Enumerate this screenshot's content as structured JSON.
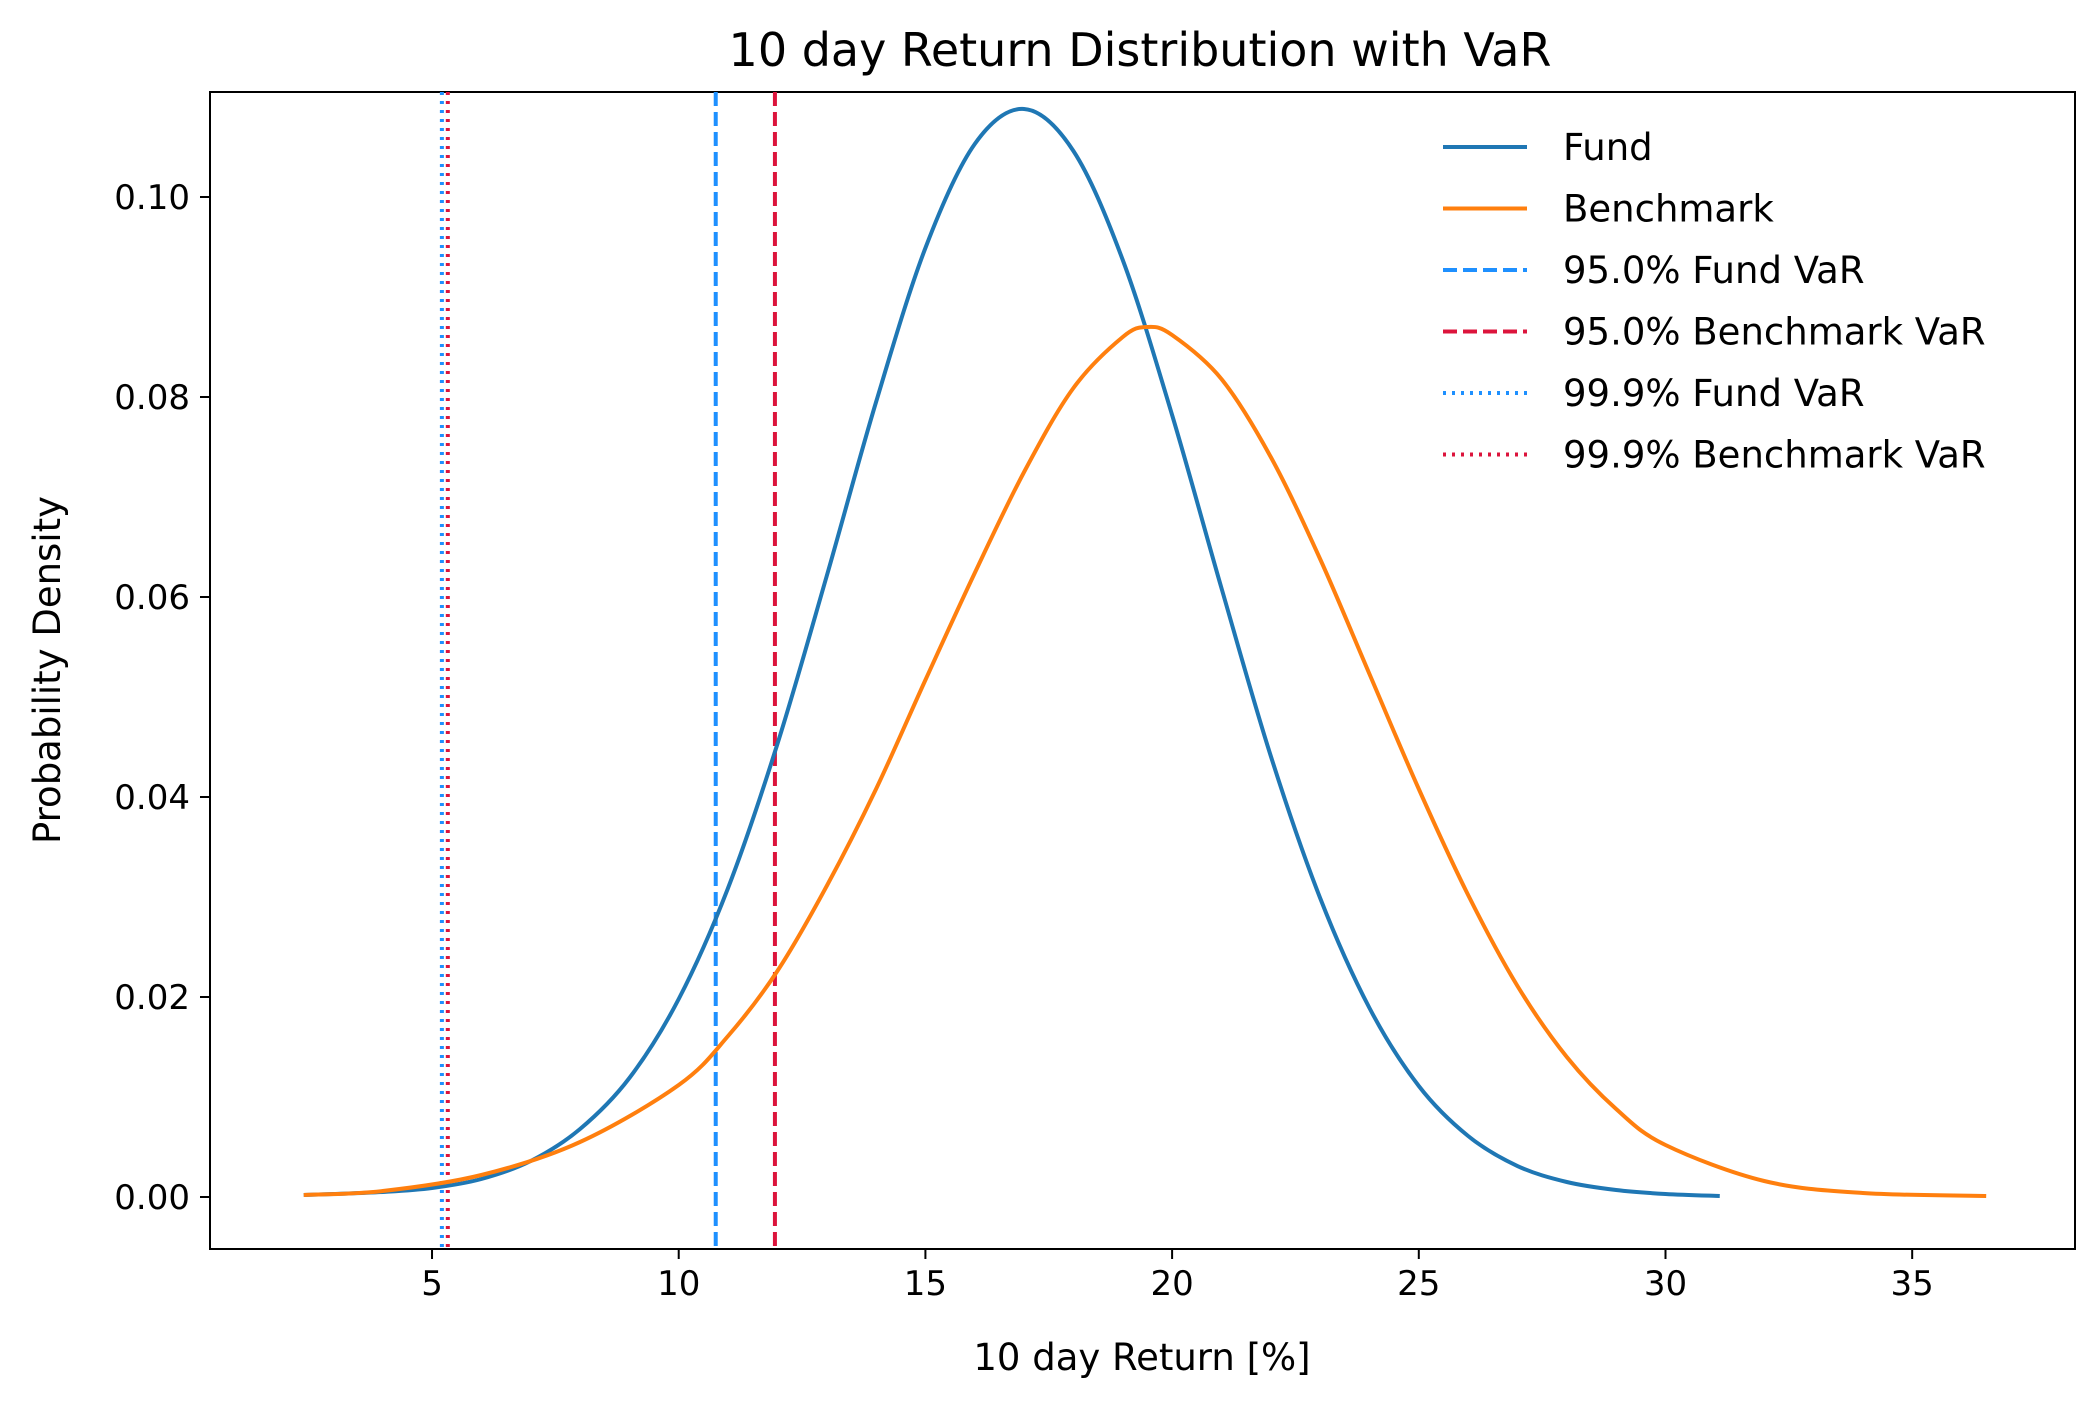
{
  "chart_data": {
    "type": "line",
    "title": "10 day Return Distribution with VaR",
    "xlabel": "10 day Return [%]",
    "ylabel": "Probability Density",
    "xlim": [
      0.5,
      38.3
    ],
    "ylim": [
      -0.0052,
      0.1105
    ],
    "xticks": [
      5,
      10,
      15,
      20,
      25,
      30,
      35
    ],
    "xtick_labels": [
      "5",
      "10",
      "15",
      "20",
      "25",
      "30",
      "35"
    ],
    "yticks": [
      0,
      0.02,
      0.04,
      0.06,
      0.08,
      0.1
    ],
    "ytick_labels": [
      "0.00",
      "0.02",
      "0.04",
      "0.06",
      "0.08",
      "0.10"
    ],
    "grid": false,
    "legend_position": "top-right",
    "series": [
      {
        "name": "Fund",
        "color": "#1f77b4",
        "style": "solid",
        "x": [
          2.4,
          3,
          4,
          5,
          6,
          7,
          8,
          9,
          10,
          11,
          12,
          13,
          14,
          15,
          16,
          17,
          18,
          19,
          20,
          21,
          22,
          23,
          24,
          25,
          26,
          27,
          28,
          29,
          30,
          31.1
        ],
        "y": [
          0.0002,
          0.0003,
          0.0005,
          0.0009,
          0.0018,
          0.0036,
          0.0068,
          0.0119,
          0.0198,
          0.0309,
          0.0453,
          0.0621,
          0.0795,
          0.0949,
          0.1053,
          0.1088,
          0.1046,
          0.0937,
          0.0782,
          0.0609,
          0.0441,
          0.0299,
          0.0189,
          0.0111,
          0.0061,
          0.0031,
          0.0015,
          0.0007,
          0.0003,
          0.0001
        ]
      },
      {
        "name": "Benchmark",
        "color": "#ff7f0e",
        "style": "solid",
        "x": [
          2.4,
          4,
          6,
          8,
          10,
          11,
          12,
          13,
          14,
          15,
          16,
          17,
          18,
          19,
          19.5,
          20,
          21,
          22,
          23,
          24,
          25,
          26,
          27,
          28,
          29,
          30,
          32,
          34,
          36.5
        ],
        "y": [
          0.0002,
          0.0006,
          0.0022,
          0.0055,
          0.0112,
          0.0161,
          0.0226,
          0.0311,
          0.0408,
          0.0517,
          0.0624,
          0.0725,
          0.0809,
          0.086,
          0.087,
          0.0862,
          0.0818,
          0.074,
          0.0638,
          0.0523,
          0.0408,
          0.0302,
          0.0211,
          0.014,
          0.0088,
          0.0052,
          0.0016,
          0.0004,
          0.0001
        ]
      }
    ],
    "vlines": [
      {
        "name": "95.0% Fund VaR",
        "x": 10.75,
        "color": "#1e90ff",
        "style": "dashed"
      },
      {
        "name": "95.0% Benchmark VaR",
        "x": 11.95,
        "color": "#dc143c",
        "style": "dashed"
      },
      {
        "name": "99.9% Fund VaR",
        "x": 5.2,
        "color": "#1e90ff",
        "style": "dotted"
      },
      {
        "name": "99.9% Benchmark VaR",
        "x": 5.32,
        "color": "#dc143c",
        "style": "dotted"
      }
    ]
  }
}
